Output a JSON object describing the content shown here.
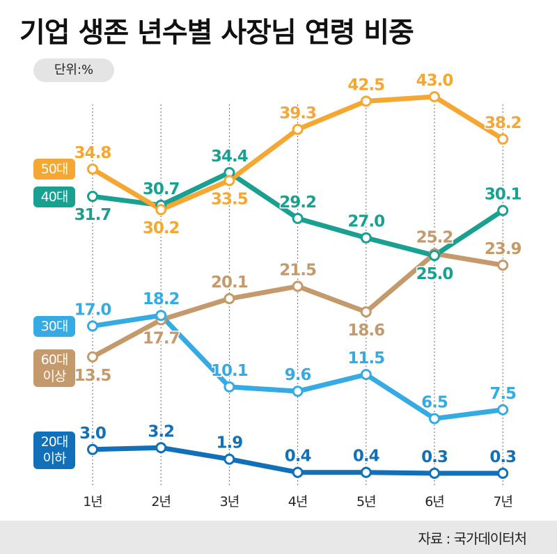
{
  "title": "기업 생존 년수별 사장님 연령 비중",
  "unit": "단위:%",
  "source": "자료 : 국가데이터처",
  "chart_data": {
    "type": "line",
    "categories": [
      "1년",
      "2년",
      "3년",
      "4년",
      "5년",
      "6년",
      "7년"
    ],
    "ylim": [
      0,
      45
    ],
    "grid": "vertical dotted lines at each category",
    "legend_placement": "left",
    "series": [
      {
        "name": "50대",
        "color": "#f5a733",
        "values": [
          34.8,
          30.2,
          33.5,
          39.3,
          42.5,
          43.0,
          38.2
        ],
        "labels": [
          "34.8",
          "30.2",
          "33.5",
          "39.3",
          "42.5",
          "43.0",
          "38.2"
        ]
      },
      {
        "name": "40대",
        "color": "#19a090",
        "values": [
          31.7,
          30.7,
          34.4,
          29.2,
          27.0,
          25.0,
          30.1
        ],
        "labels": [
          "31.7",
          "30.7",
          "34.4",
          "29.2",
          "27.0",
          "25.0",
          "30.1"
        ]
      },
      {
        "name": "60대 이상",
        "color": "#c49a6c",
        "values": [
          13.5,
          17.7,
          20.1,
          21.5,
          18.6,
          25.2,
          23.9
        ],
        "labels": [
          "13.5",
          "17.7",
          "20.1",
          "21.5",
          "18.6",
          "25.2",
          "23.9"
        ]
      },
      {
        "name": "30대",
        "color": "#36aae2",
        "values": [
          17.0,
          18.2,
          10.1,
          9.6,
          11.5,
          6.5,
          7.5
        ],
        "labels": [
          "17.0",
          "18.2",
          "10.1",
          "9.6",
          "11.5",
          "6.5",
          "7.5"
        ]
      },
      {
        "name": "20대 이하",
        "color": "#1170b8",
        "values": [
          3.0,
          3.2,
          1.9,
          0.4,
          0.4,
          0.3,
          0.3
        ],
        "labels": [
          "3.0",
          "3.2",
          "1.9",
          "0.4",
          "0.4",
          "0.3",
          "0.3"
        ]
      }
    ]
  },
  "legend": {
    "s50": {
      "line1": "50대"
    },
    "s40": {
      "line1": "40대"
    },
    "s30": {
      "line1": "30대"
    },
    "s60": {
      "line1": "60대",
      "line2": "이상"
    },
    "s20": {
      "line1": "20대",
      "line2": "이하"
    }
  }
}
